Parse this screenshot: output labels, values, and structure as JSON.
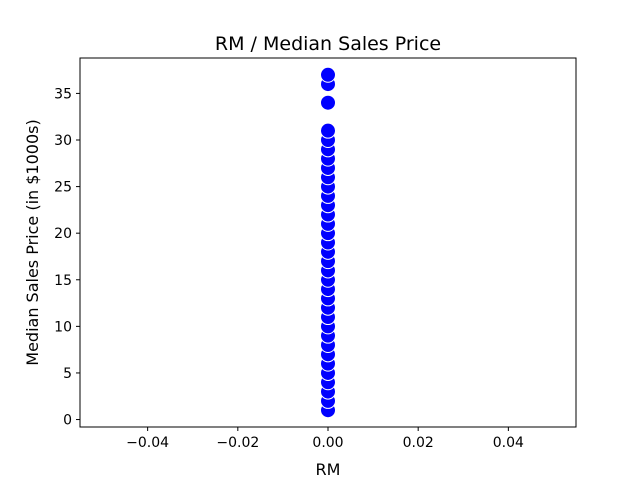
{
  "chart_data": {
    "type": "scatter",
    "title": "RM / Median Sales Price",
    "xlabel": "RM",
    "ylabel": "Median Sales Price (in $1000s)",
    "xlim": [
      -0.055,
      0.055
    ],
    "ylim": [
      -0.8,
      38.8
    ],
    "xticks": [
      -0.04,
      -0.02,
      0.0,
      0.02,
      0.04
    ],
    "xtick_labels": [
      "−0.04",
      "−0.02",
      "0.00",
      "0.02",
      "0.04"
    ],
    "yticks": [
      0,
      5,
      10,
      15,
      20,
      25,
      30,
      35
    ],
    "ytick_labels": [
      "0",
      "5",
      "10",
      "15",
      "20",
      "25",
      "30",
      "35"
    ],
    "grid": false,
    "marker_color": "#0000ff",
    "marker_edge_color": "#ffffff",
    "series": [
      {
        "x": [
          0,
          0,
          0,
          0,
          0,
          0,
          0,
          0,
          0,
          0,
          0,
          0,
          0,
          0,
          0,
          0,
          0,
          0,
          0,
          0,
          0,
          0,
          0,
          0,
          0,
          0,
          0,
          0,
          0,
          0,
          0,
          0,
          0,
          0
        ],
        "y": [
          1,
          2,
          3,
          4,
          5,
          6,
          7,
          8,
          9,
          10,
          11,
          12,
          13,
          14,
          15,
          16,
          17,
          18,
          19,
          20,
          21,
          22,
          23,
          24,
          25,
          26,
          27,
          28,
          29,
          30,
          31,
          34,
          36,
          37
        ]
      }
    ]
  }
}
